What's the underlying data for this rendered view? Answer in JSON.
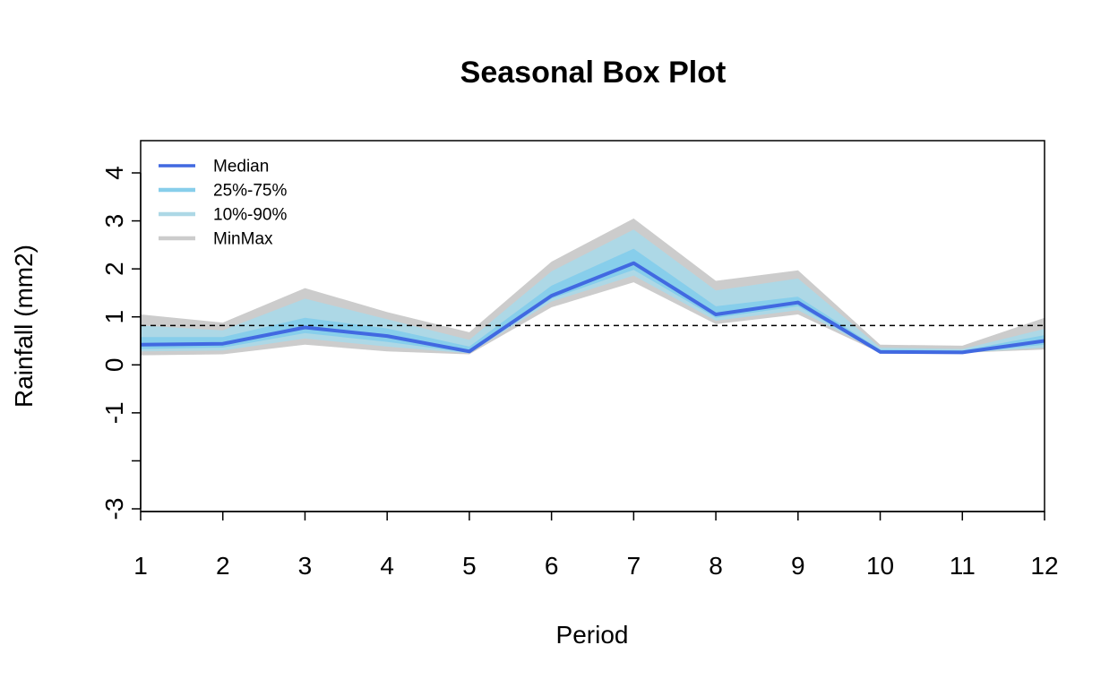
{
  "chart_data": {
    "type": "area",
    "title": "Seasonal Box Plot",
    "xlabel": "Period",
    "ylabel": "Rainfall (mm2)",
    "x": [
      1,
      2,
      3,
      4,
      5,
      6,
      7,
      8,
      9,
      10,
      11,
      12
    ],
    "xlim": [
      1,
      12
    ],
    "ylim": [
      -3,
      4.7
    ],
    "y_ticks": [
      4,
      3,
      2,
      1,
      0,
      -1,
      -2,
      -3
    ],
    "y_tick_labels": [
      "4",
      "3",
      "2",
      "1",
      "0",
      "-1",
      "",
      "-3"
    ],
    "x_tick_labels": [
      "1",
      "2",
      "3",
      "4",
      "5",
      "6",
      "7",
      "8",
      "9",
      "10",
      "11",
      "12"
    ],
    "reference_line": {
      "y": 0.82,
      "style": "dashed",
      "color": "#000000"
    },
    "legend_position": "top-left",
    "grid": false,
    "series": [
      {
        "name": "MinMax",
        "color": "#cccccc",
        "lower": [
          0.2,
          0.22,
          0.42,
          0.28,
          0.22,
          1.2,
          1.72,
          0.85,
          1.05,
          0.25,
          0.25,
          0.32
        ],
        "upper": [
          1.05,
          0.88,
          1.6,
          1.1,
          0.68,
          2.15,
          3.05,
          1.75,
          1.97,
          0.42,
          0.4,
          0.98
        ]
      },
      {
        "name": "10%-90%",
        "color": "#add8e6",
        "lower": [
          0.28,
          0.3,
          0.55,
          0.38,
          0.24,
          1.32,
          1.86,
          0.92,
          1.14,
          0.26,
          0.25,
          0.36
        ],
        "upper": [
          0.82,
          0.72,
          1.38,
          0.95,
          0.52,
          1.95,
          2.82,
          1.55,
          1.8,
          0.36,
          0.33,
          0.75
        ]
      },
      {
        "name": "25%-75%",
        "color": "#87ceeb",
        "lower": [
          0.33,
          0.36,
          0.66,
          0.48,
          0.25,
          1.38,
          1.98,
          0.98,
          1.22,
          0.26,
          0.25,
          0.42
        ],
        "upper": [
          0.58,
          0.58,
          0.98,
          0.76,
          0.38,
          1.65,
          2.42,
          1.22,
          1.42,
          0.32,
          0.3,
          0.62
        ]
      },
      {
        "name": "Median",
        "color": "#4169e1",
        "values": [
          0.42,
          0.44,
          0.78,
          0.6,
          0.28,
          1.44,
          2.12,
          1.05,
          1.3,
          0.27,
          0.26,
          0.5
        ]
      }
    ],
    "legend": [
      {
        "label": "Median",
        "color": "#4169e1"
      },
      {
        "label": "25%-75%",
        "color": "#87ceeb"
      },
      {
        "label": "10%-90%",
        "color": "#add8e6"
      },
      {
        "label": "MinMax",
        "color": "#cccccc"
      }
    ]
  }
}
